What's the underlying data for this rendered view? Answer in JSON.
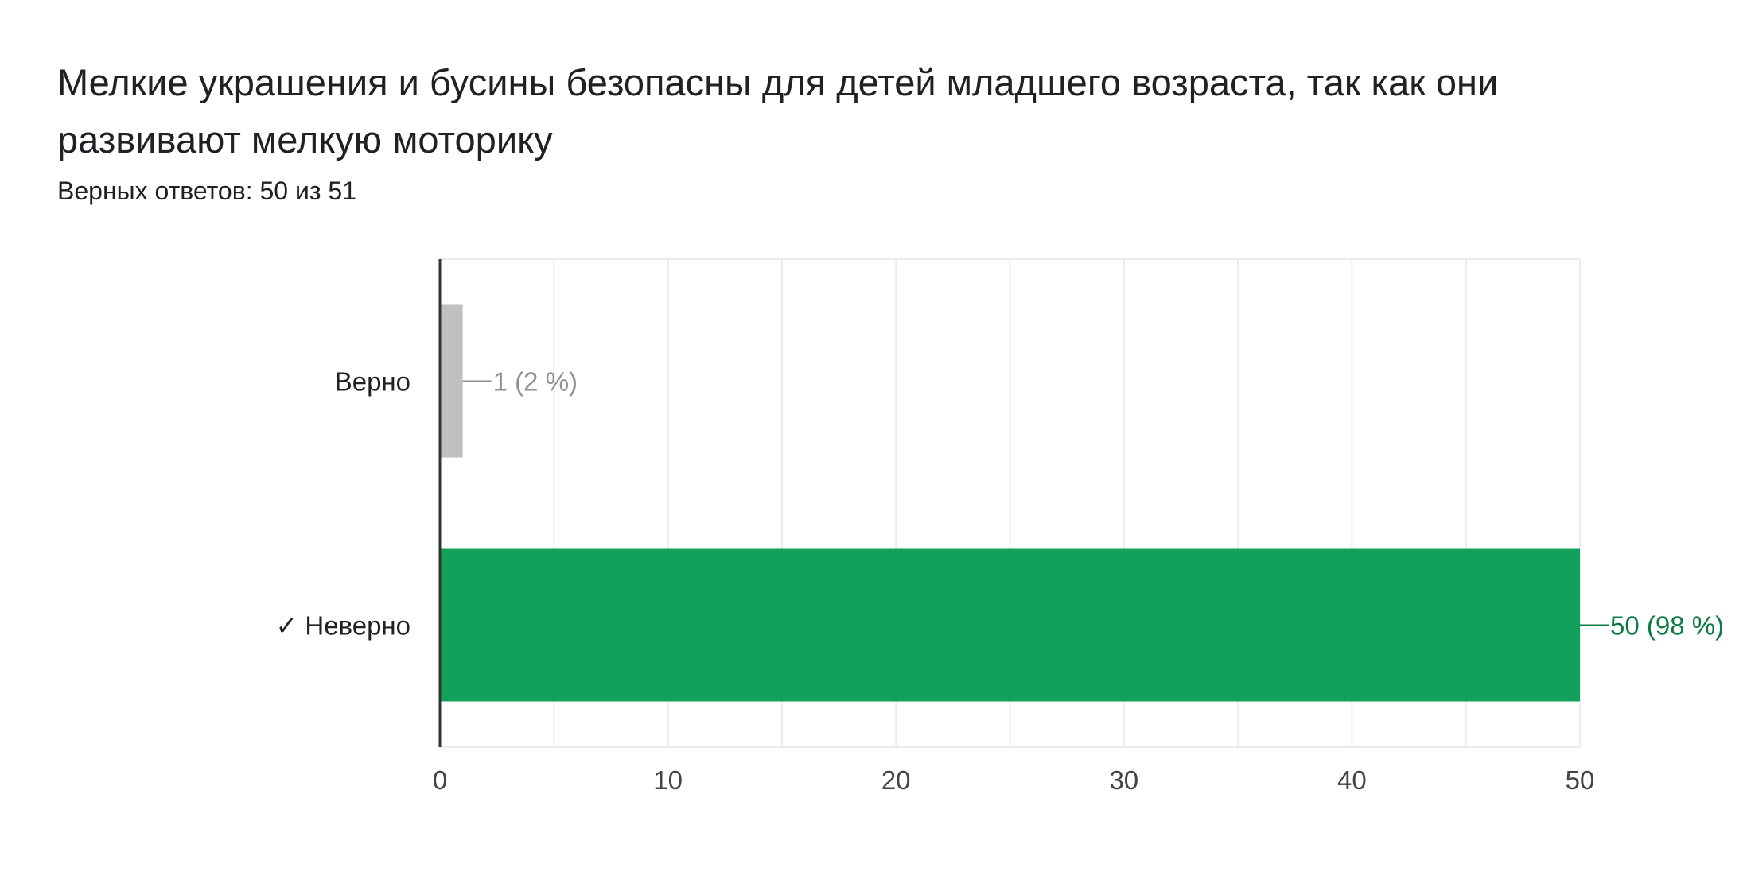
{
  "question": {
    "title": "Мелкие украшения и бусины безопасны для детей младшего возраста, так как они развивают мелкую моторику",
    "score_text": "Верных ответов: 50 из 51"
  },
  "colors": {
    "correct": "#12a05c",
    "correct_text": "#0b7a45",
    "incorrect": "#c0c0c0",
    "incorrect_text": "#8f8f8f"
  },
  "chart_data": {
    "type": "bar",
    "orientation": "horizontal",
    "categories": [
      "Верно",
      "✓ Неверно"
    ],
    "values": [
      1,
      50
    ],
    "data_labels": [
      "1 (2 %)",
      "50 (98 %)"
    ],
    "correct_index": 1,
    "xlim": [
      0,
      50
    ],
    "xticks": [
      0,
      10,
      20,
      30,
      40,
      50
    ],
    "grid": true,
    "legend": "none"
  }
}
